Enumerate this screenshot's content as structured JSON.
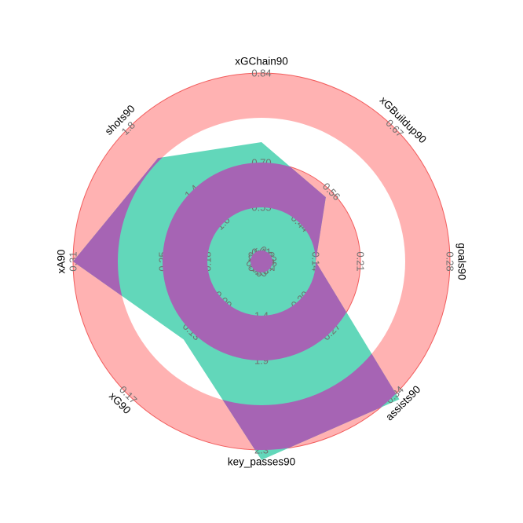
{
  "chart_data": {
    "type": "radar",
    "params": [
      "xGChain90",
      "xGBuildup90",
      "goals90",
      "assists90",
      "key_passes90",
      "xG90",
      "xA90",
      "shots90"
    ],
    "ticks": [
      [
        "0.41",
        "0.55",
        "0.70",
        "0.84"
      ],
      [
        "0.33",
        "0.44",
        "0.56",
        "0.67"
      ],
      [
        "0.07",
        "0.14",
        "0.21",
        "0.28"
      ],
      [
        "0.13",
        "0.20",
        "0.27",
        "0.34"
      ],
      [
        "1.0",
        "1.4",
        "1.9",
        "2.3"
      ],
      [
        "0.05",
        "0.09",
        "0.13",
        "0.17"
      ],
      [
        "0.12",
        "0.18",
        "0.25",
        "0.31"
      ],
      [
        "0.5",
        "1.0",
        "1.4",
        "1.8"
      ]
    ],
    "ring_colors": [
      "#ffb2b2",
      "#ffffff"
    ],
    "ring_edge_color": "#f25c5c",
    "series": [
      {
        "values": [
          0.62,
          0.425,
          0.07,
          0.35,
          2.4,
          0.1,
          0.31,
          1.4
        ],
        "range_min": [
          0.27,
          0.22,
          0.0,
          0.06,
          0.5,
          0.01,
          0.06,
          0.1
        ],
        "range_max": [
          0.84,
          0.67,
          0.28,
          0.34,
          2.3,
          0.17,
          0.31,
          1.8
        ],
        "color": "#62d7ba"
      }
    ],
    "compare_color": "#a664b4",
    "compare_bands": [
      0.05,
      0.37,
      0.57
    ]
  }
}
